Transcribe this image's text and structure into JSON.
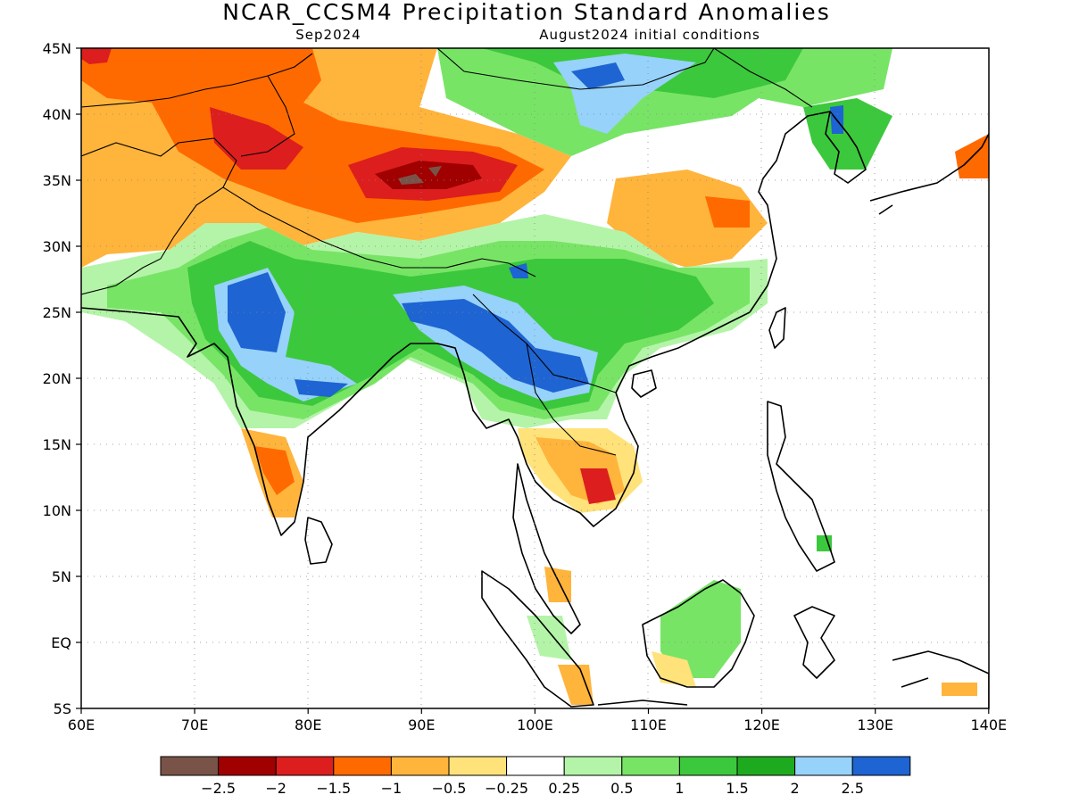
{
  "title": "NCAR_CCSM4 Precipitation Standard Anomalies",
  "subtitle_left": "Sep2024",
  "subtitle_right": "August2024 initial conditions",
  "lat_ticks": [
    "45N",
    "40N",
    "35N",
    "30N",
    "25N",
    "20N",
    "15N",
    "10N",
    "5N",
    "EQ",
    "5S"
  ],
  "lon_ticks": [
    "60E",
    "70E",
    "80E",
    "90E",
    "100E",
    "110E",
    "120E",
    "130E",
    "140E"
  ],
  "colorbar": {
    "colors": [
      "#7a5348",
      "#a00000",
      "#dc1e1e",
      "#ff6a00",
      "#ffb43c",
      "#ffe27a",
      "#ffffff",
      "#b4f4a8",
      "#78e466",
      "#3cc83c",
      "#1eaa1e",
      "#96d2fa",
      "#1e64d2"
    ],
    "labels": [
      "-2.5",
      "-2",
      "-1.5",
      "-1",
      "-0.5",
      "-0.25",
      "0.25",
      "0.5",
      "1",
      "1.5",
      "2",
      "2.5"
    ]
  }
}
